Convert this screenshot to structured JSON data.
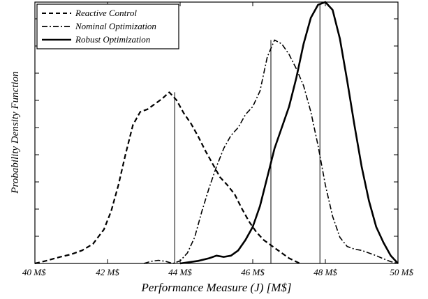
{
  "chart_data": {
    "type": "line",
    "title": "",
    "xlabel": "Performance Measure (J) [M$]",
    "ylabel": "Probability Density Function",
    "xlim": [
      40,
      50
    ],
    "ylim": [
      0,
      1
    ],
    "x_ticks": [
      40,
      42,
      44,
      46,
      48,
      50
    ],
    "x_tick_labels": [
      "40 M$",
      "42 M$",
      "44 M$",
      "46 M$",
      "48 M$",
      "50 M$"
    ],
    "y_ticks_minor": [
      0.104,
      0.208,
      0.312,
      0.416,
      0.52,
      0.624,
      0.728,
      0.832,
      0.936
    ],
    "y_tick_labels_shown": false,
    "grid": false,
    "legend": {
      "position": "top-left"
    },
    "series": [
      {
        "name": "Reactive Control",
        "style": "dashed",
        "color": "#000000",
        "x": [
          40.0,
          40.3,
          40.7,
          41.0,
          41.3,
          41.6,
          41.9,
          42.1,
          42.3,
          42.5,
          42.7,
          42.9,
          43.1,
          43.3,
          43.5,
          43.7,
          43.9,
          44.1,
          44.3,
          44.5,
          44.7,
          44.9,
          45.1,
          45.3,
          45.5,
          45.7,
          45.9,
          46.1,
          46.3,
          46.5,
          46.7,
          47.0,
          47.3
        ],
        "y": [
          0.0,
          0.01,
          0.025,
          0.035,
          0.05,
          0.075,
          0.13,
          0.2,
          0.3,
          0.42,
          0.53,
          0.58,
          0.59,
          0.61,
          0.63,
          0.655,
          0.625,
          0.575,
          0.535,
          0.485,
          0.43,
          0.38,
          0.33,
          0.3,
          0.265,
          0.21,
          0.16,
          0.12,
          0.09,
          0.07,
          0.05,
          0.02,
          0.0
        ]
      },
      {
        "name": "Nominal Optimization",
        "style": "dashdot",
        "color": "#000000",
        "x": [
          43.0,
          43.2,
          43.4,
          43.6,
          43.8,
          44.0,
          44.2,
          44.4,
          44.6,
          44.8,
          45.0,
          45.2,
          45.4,
          45.6,
          45.8,
          46.0,
          46.2,
          46.4,
          46.6,
          46.8,
          47.0,
          47.2,
          47.4,
          47.6,
          47.8,
          48.0,
          48.2,
          48.4,
          48.6,
          48.8,
          49.0,
          49.2,
          49.4,
          49.6,
          49.8,
          50.0
        ],
        "y": [
          0.0,
          0.008,
          0.012,
          0.008,
          0.0,
          0.01,
          0.04,
          0.1,
          0.2,
          0.29,
          0.37,
          0.44,
          0.49,
          0.52,
          0.57,
          0.6,
          0.66,
          0.79,
          0.855,
          0.84,
          0.8,
          0.745,
          0.68,
          0.58,
          0.45,
          0.3,
          0.18,
          0.1,
          0.065,
          0.055,
          0.05,
          0.04,
          0.03,
          0.018,
          0.007,
          0.0
        ]
      },
      {
        "name": "Robust Optimization",
        "style": "solid",
        "color": "#000000",
        "x": [
          44.0,
          44.5,
          44.8,
          45.0,
          45.2,
          45.4,
          45.6,
          45.8,
          46.0,
          46.2,
          46.4,
          46.6,
          46.8,
          47.0,
          47.2,
          47.4,
          47.6,
          47.8,
          48.0,
          48.2,
          48.4,
          48.6,
          48.8,
          49.0,
          49.2,
          49.4,
          49.6,
          49.8,
          50.0
        ],
        "y": [
          0.0,
          0.01,
          0.02,
          0.03,
          0.025,
          0.03,
          0.05,
          0.09,
          0.14,
          0.22,
          0.33,
          0.44,
          0.52,
          0.6,
          0.71,
          0.84,
          0.94,
          0.99,
          1.0,
          0.97,
          0.86,
          0.7,
          0.53,
          0.37,
          0.24,
          0.14,
          0.08,
          0.03,
          0.0
        ]
      }
    ],
    "reference_lines": [
      {
        "x": 43.85,
        "y_top": 0.655,
        "color": "#000000"
      },
      {
        "x": 46.5,
        "y_top": 0.855,
        "color": "#000000"
      },
      {
        "x": 47.85,
        "y_top": 0.995,
        "color": "#000000"
      }
    ]
  }
}
